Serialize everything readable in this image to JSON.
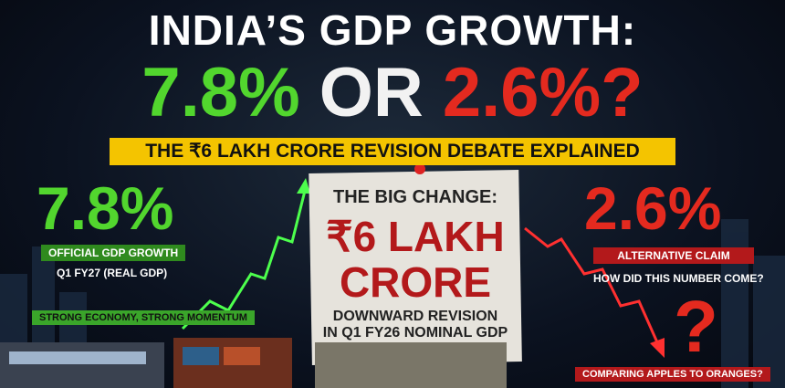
{
  "header": {
    "title": "INDIA’S GDP GROWTH:",
    "headline": {
      "left": "7.8%",
      "middle": "OR",
      "right": "2.6%?"
    },
    "banner": "THE ₹6 LAKH CRORE REVISION DEBATE EXPLAINED"
  },
  "left_panel": {
    "value": "7.8%",
    "label": "OFFICIAL GDP GROWTH",
    "sublabel": "Q1 FY27 (REAL GDP)",
    "tagline": "STRONG ECONOMY, STRONG MOMENTUM"
  },
  "center_panel": {
    "kicker": "THE BIG CHANGE:",
    "amount_line1": "₹6 LAKH",
    "amount_line2": "CRORE",
    "description_line1": "DOWNWARD REVISION",
    "description_line2": "IN Q1 FY26 NOMINAL GDP"
  },
  "right_panel": {
    "value": "2.6%",
    "label": "ALTERNATIVE CLAIM",
    "sublabel": "HOW DID THIS NUMBER COME?",
    "mark": "?",
    "tagline": "COMPARING APPLES TO ORANGES?"
  }
}
